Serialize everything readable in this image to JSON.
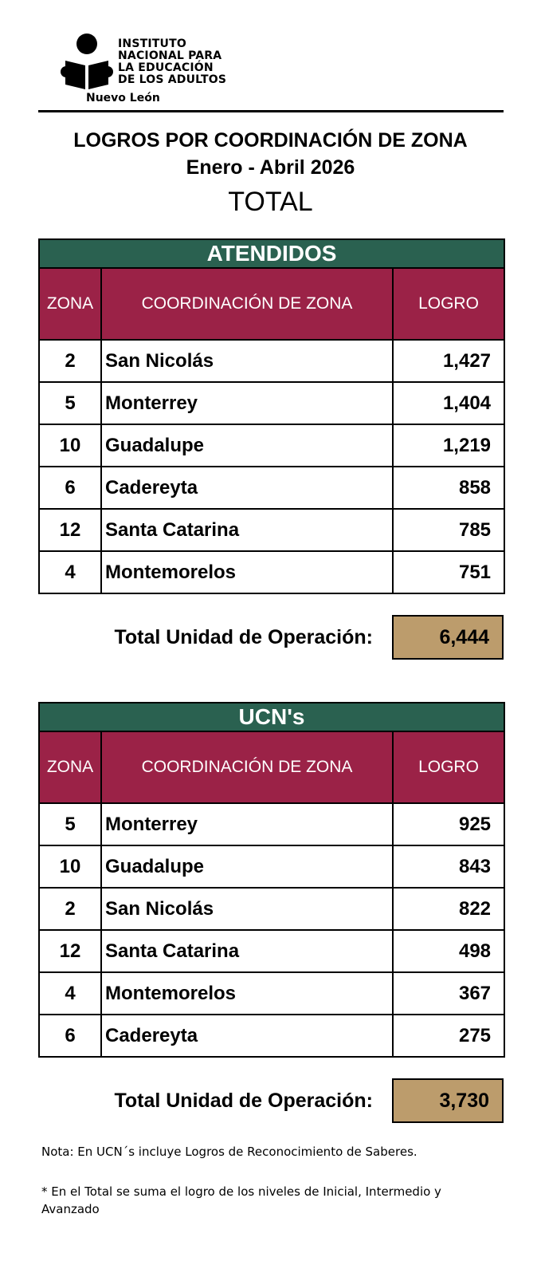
{
  "header": {
    "logo_lines": [
      "INSTITUTO",
      "NACIONAL PARA",
      "LA EDUCACIÓN",
      "DE LOS ADULTOS"
    ],
    "logo_sub": "Nuevo León",
    "title": "LOGROS POR COORDINACIÓN DE ZONA",
    "period": "Enero - Abril 2026",
    "subtitle": "TOTAL"
  },
  "columns": {
    "zona": "ZONA",
    "coordinacion": "COORDINACIÓN DE ZONA",
    "logro": "LOGRO"
  },
  "colors": {
    "band": "#2a6150",
    "header": "#9b2247",
    "total_box": "#bc9c6c"
  },
  "tables": [
    {
      "title": "ATENDIDOS",
      "rows": [
        {
          "zona": "2",
          "nombre": "San Nicolás",
          "logro": "1,427"
        },
        {
          "zona": "5",
          "nombre": "Monterrey",
          "logro": "1,404"
        },
        {
          "zona": "10",
          "nombre": "Guadalupe",
          "logro": "1,219"
        },
        {
          "zona": "6",
          "nombre": "Cadereyta",
          "logro": "858"
        },
        {
          "zona": "12",
          "nombre": "Santa Catarina",
          "logro": "785"
        },
        {
          "zona": "4",
          "nombre": "Montemorelos",
          "logro": "751"
        }
      ],
      "total_label": "Total Unidad de Operación:",
      "total_value": "6,444"
    },
    {
      "title": "UCN's",
      "rows": [
        {
          "zona": "5",
          "nombre": "Monterrey",
          "logro": "925"
        },
        {
          "zona": "10",
          "nombre": "Guadalupe",
          "logro": "843"
        },
        {
          "zona": "2",
          "nombre": "San Nicolás",
          "logro": "822"
        },
        {
          "zona": "12",
          "nombre": "Santa Catarina",
          "logro": "498"
        },
        {
          "zona": "4",
          "nombre": "Montemorelos",
          "logro": "367"
        },
        {
          "zona": "6",
          "nombre": "Cadereyta",
          "logro": "275"
        }
      ],
      "total_label": "Total Unidad de Operación:",
      "total_value": "3,730"
    }
  ],
  "notes": {
    "ucn": "Nota: En UCN´s incluye Logros de Reconocimiento de Saberes.",
    "total": "* En el Total se suma el logro de los niveles de Inicial, Intermedio y Avanzado"
  }
}
